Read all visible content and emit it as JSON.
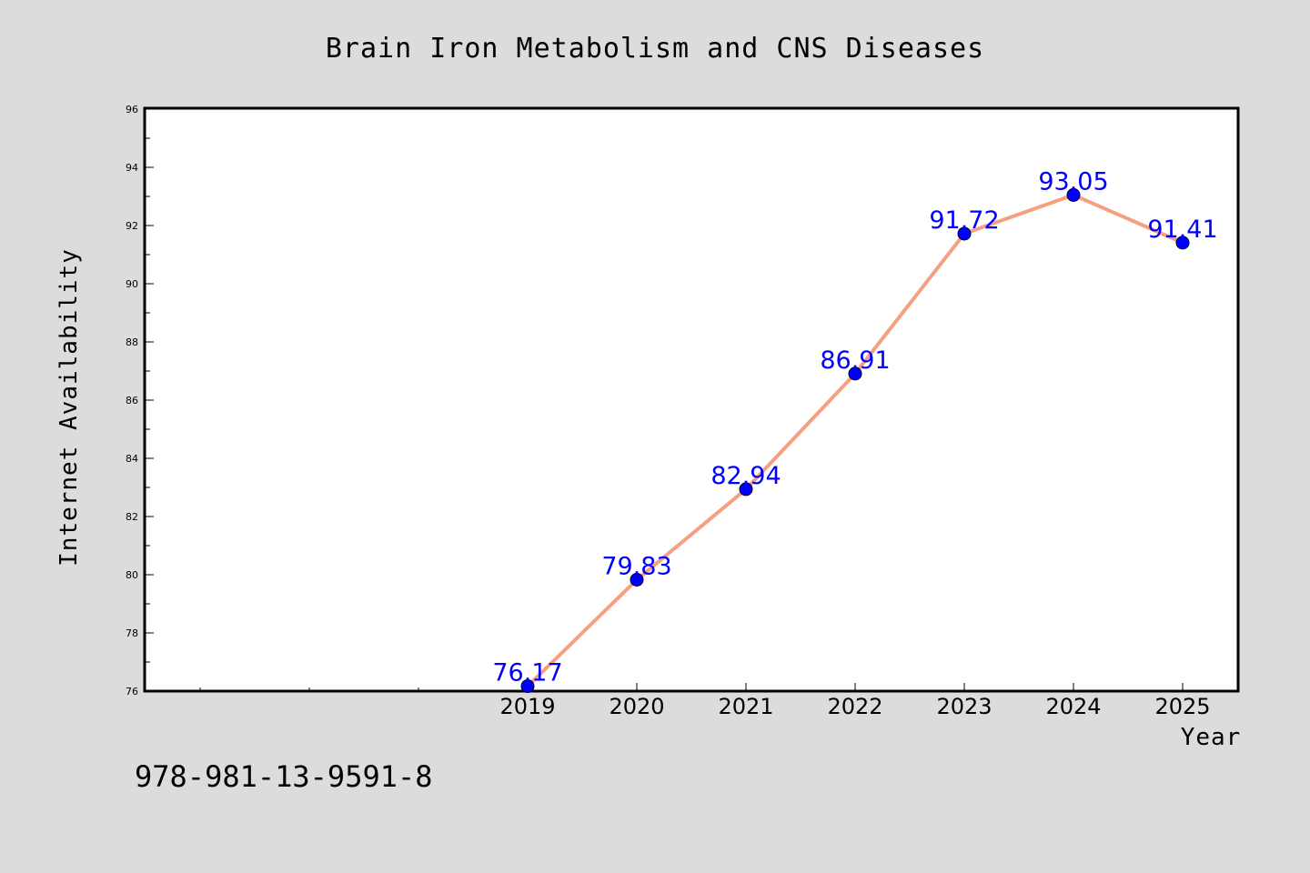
{
  "chart_data": {
    "type": "line",
    "title": "Brain Iron Metabolism and CNS Diseases",
    "xlabel": "Year",
    "ylabel": "Internet Availability",
    "x": [
      "2019",
      "2020",
      "2021",
      "2022",
      "2023",
      "2024",
      "2025"
    ],
    "series": [
      {
        "values": [
          76.17,
          79.83,
          82.94,
          86.91,
          91.72,
          93.05,
          91.41
        ],
        "labels": [
          "76.17",
          "79.83",
          "82.94",
          "86.91",
          "91.72",
          "93.05",
          "91.41"
        ]
      }
    ],
    "ylim": [
      76,
      96
    ],
    "yticks": [
      "76",
      "78",
      "80",
      "82",
      "84",
      "86",
      "88",
      "90",
      "92",
      "94",
      "96"
    ],
    "grid": false,
    "line_color": "#f5a081",
    "marker_color": "#0000ff",
    "label_color": "#0000ff"
  },
  "footer_text": "978-981-13-9591-8"
}
